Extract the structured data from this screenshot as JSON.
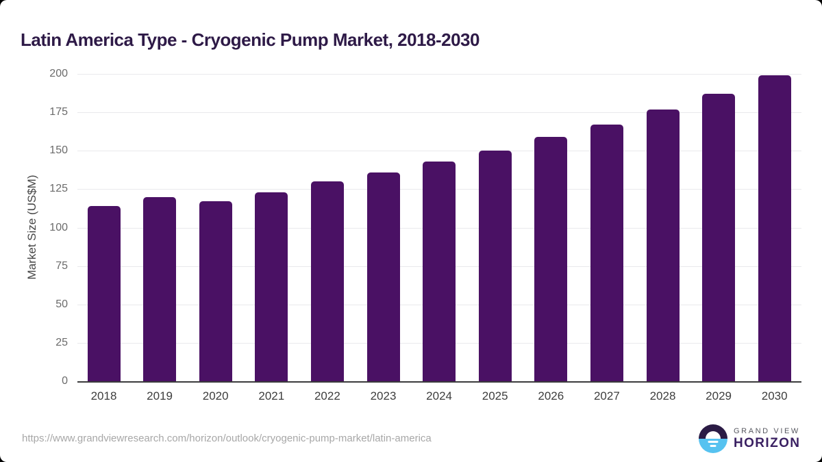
{
  "page": {
    "title": "Latin America Type - Cryogenic Pump Market, 2018-2030",
    "source_url": "https://www.grandviewresearch.com/horizon/outlook/cryogenic-pump-market/latin-america",
    "logo": {
      "line1": "GRAND VIEW",
      "line2": "HORIZON"
    }
  },
  "colors": {
    "bar": "#4a1164",
    "title": "#2e1a47",
    "gridline": "#e9e9ec",
    "axis_line": "#3a3a3c",
    "logo_top": "#2b1b45",
    "logo_bottom": "#56c2f0"
  },
  "chart_data": {
    "type": "bar",
    "title": "Latin America Type - Cryogenic Pump Market, 2018-2030",
    "categories": [
      "2018",
      "2019",
      "2020",
      "2021",
      "2022",
      "2023",
      "2024",
      "2025",
      "2026",
      "2027",
      "2028",
      "2029",
      "2030"
    ],
    "values": [
      114,
      120,
      117,
      123,
      130,
      136,
      143,
      150,
      159,
      167,
      177,
      187,
      199
    ],
    "xlabel": "",
    "ylabel": "Market Size (US$M)",
    "ylim": [
      0,
      200
    ],
    "yticks": [
      0,
      25,
      50,
      75,
      100,
      125,
      150,
      175,
      200
    ],
    "grid": "horizontal",
    "legend": "none",
    "bar_color": "#4a1164"
  }
}
